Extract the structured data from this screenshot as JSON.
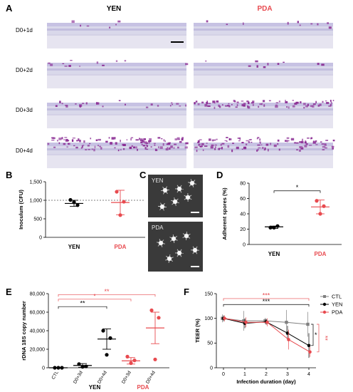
{
  "colors": {
    "yen": "#000000",
    "pda": "#e84a4f",
    "ctl": "#808080",
    "axis": "#000000"
  },
  "panel_a": {
    "letter": "A",
    "col_headers": [
      "YEN",
      "PDA"
    ],
    "row_labels": [
      "D0+1d",
      "D0+2d",
      "D0+3d",
      "D0+4d"
    ],
    "staining_level": {
      "YEN": [
        0.05,
        0.1,
        0.2,
        0.95
      ],
      "PDA": [
        0.08,
        0.08,
        0.65,
        0.9
      ]
    }
  },
  "panel_b": {
    "letter": "B"
  },
  "panel_c": {
    "letter": "C",
    "labels": [
      "YEN",
      "PDA"
    ]
  },
  "panel_d": {
    "letter": "D"
  },
  "panel_e": {
    "letter": "E"
  },
  "panel_f": {
    "letter": "F"
  },
  "chart_data": [
    {
      "id": "B",
      "type": "scatter",
      "ylabel": "Inoculum (CFU)",
      "categories": [
        "YEN",
        "PDA"
      ],
      "ylim": [
        0,
        1500
      ],
      "yticks": [
        0,
        500,
        1000,
        1500
      ],
      "ytick_labels": [
        "0",
        "500",
        "1,000",
        "1,500"
      ],
      "reference_line": 1000,
      "series": [
        {
          "category": "YEN",
          "points": [
            1010,
            870,
            950
          ],
          "mean": 915,
          "err": [
            835,
            1000
          ]
        },
        {
          "category": "PDA",
          "points": [
            1230,
            960,
            600
          ],
          "mean": 940,
          "err": [
            610,
            1270
          ]
        }
      ]
    },
    {
      "id": "D",
      "type": "scatter",
      "ylabel": "Adherent spores (%)",
      "categories": [
        "YEN",
        "PDA"
      ],
      "ylim": [
        0,
        80
      ],
      "yticks": [
        0,
        20,
        40,
        60,
        80
      ],
      "ytick_labels": [
        "0",
        "20",
        "40",
        "60",
        "80"
      ],
      "significance": "*",
      "series": [
        {
          "category": "YEN",
          "points": [
            22,
            24,
            22
          ],
          "mean": 23,
          "err": [
            21,
            24
          ]
        },
        {
          "category": "PDA",
          "points": [
            57,
            50,
            40
          ],
          "mean": 49,
          "err": [
            40,
            58
          ]
        }
      ]
    },
    {
      "id": "E",
      "type": "scatter",
      "ylabel": "rDNA 18S copy number",
      "categories": [
        "CTL",
        "D0+3d",
        "D0+4d",
        "D0+3d",
        "D0+4d"
      ],
      "group_labels": [
        "YEN",
        "PDA"
      ],
      "ylim": [
        0,
        80000
      ],
      "yticks": [
        0,
        20000,
        40000,
        60000,
        80000
      ],
      "ytick_labels": [
        "0",
        "20,000",
        "40,000",
        "60,000",
        "80,000"
      ],
      "significance": [
        {
          "from": 0,
          "to": 2,
          "label": "**",
          "series": "yen"
        },
        {
          "from": 0,
          "to": 3,
          "label": "*",
          "series": "pda"
        },
        {
          "from": 0,
          "to": 4,
          "label": "**",
          "series": "pda"
        }
      ],
      "series": [
        {
          "category": "CTL",
          "color": "yen",
          "points": [
            0,
            0,
            0
          ],
          "mean": 0,
          "err": [
            0,
            0
          ]
        },
        {
          "category": "D0+3d",
          "color": "yen",
          "points": [
            4000,
            1500,
            1000
          ],
          "mean": 2500,
          "err": [
            500,
            4500
          ]
        },
        {
          "category": "D0+4d",
          "color": "yen",
          "points": [
            40000,
            32000,
            14000
          ],
          "mean": 31000,
          "err": [
            20000,
            42000
          ]
        },
        {
          "category": "D0+3d",
          "color": "pda",
          "points": [
            12000,
            8000,
            5000
          ],
          "mean": 7500,
          "err": [
            4000,
            11000
          ]
        },
        {
          "category": "D0+4d",
          "color": "pda",
          "points": [
            62000,
            54000,
            9000
          ],
          "mean": 43000,
          "err": [
            26000,
            60000
          ]
        }
      ]
    },
    {
      "id": "F",
      "type": "line",
      "xlabel": "Infection duration (day)",
      "ylabel": "TEER (%)",
      "x": [
        0,
        1,
        2,
        3,
        4
      ],
      "ylim": [
        0,
        150
      ],
      "yticks": [
        0,
        50,
        100,
        150
      ],
      "legend": "top-right",
      "series": [
        {
          "name": "CTL",
          "color": "ctl",
          "marker": "square",
          "values": [
            100,
            95,
            95,
            92,
            88
          ],
          "err": [
            8,
            20,
            6,
            25,
            25
          ]
        },
        {
          "name": "YEN",
          "color": "yen",
          "marker": "circle",
          "values": [
            100,
            90,
            93,
            70,
            45
          ],
          "err": [
            6,
            10,
            6,
            15,
            25
          ]
        },
        {
          "name": "PDA",
          "color": "pda",
          "marker": "circle",
          "values": [
            100,
            92,
            92,
            57,
            32
          ],
          "err": [
            6,
            10,
            8,
            20,
            10
          ]
        }
      ],
      "significance": [
        {
          "label": "***",
          "series": "pda"
        },
        {
          "label": "***",
          "series": "yen"
        },
        {
          "label": "*",
          "series": "yen"
        },
        {
          "label": "**",
          "series": "pda"
        }
      ]
    }
  ]
}
